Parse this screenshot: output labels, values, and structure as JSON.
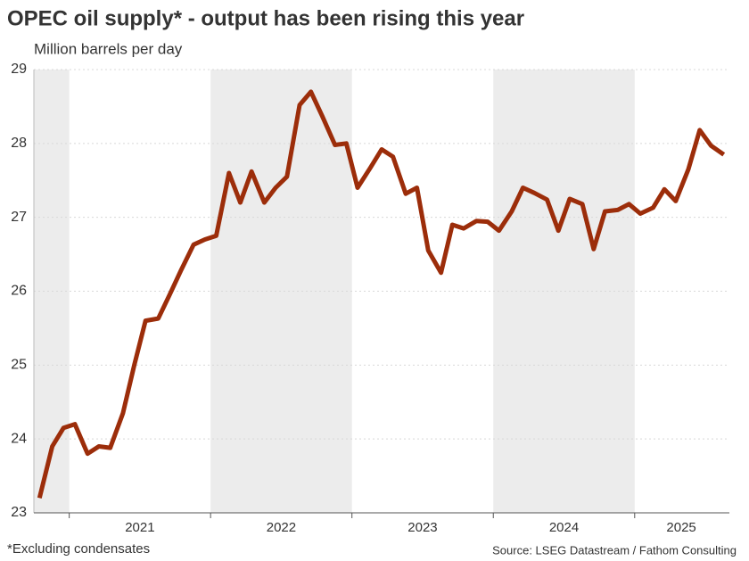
{
  "chart_data": {
    "type": "line",
    "title": "OPEC oil supply* - output has been rising this year",
    "subtitle": "Million barrels per day",
    "footnote": "*Excluding condensates",
    "source": "Source: LSEG Datastream / Fathom Consulting",
    "x": [
      2020.79,
      2020.88,
      2020.96,
      2021.04,
      2021.13,
      2021.21,
      2021.29,
      2021.38,
      2021.46,
      2021.54,
      2021.63,
      2021.71,
      2021.79,
      2021.88,
      2021.96,
      2022.04,
      2022.13,
      2022.21,
      2022.29,
      2022.38,
      2022.46,
      2022.54,
      2022.63,
      2022.71,
      2022.79,
      2022.88,
      2022.96,
      2023.04,
      2023.13,
      2023.21,
      2023.29,
      2023.38,
      2023.46,
      2023.54,
      2023.63,
      2023.71,
      2023.79,
      2023.88,
      2023.96,
      2024.04,
      2024.13,
      2024.21,
      2024.29,
      2024.38,
      2024.46,
      2024.54,
      2024.63,
      2024.71,
      2024.79,
      2024.88,
      2024.96,
      2025.04,
      2025.13,
      2025.21,
      2025.29,
      2025.38,
      2025.46,
      2025.54,
      2025.63
    ],
    "series": [
      {
        "name": "OPEC oil supply",
        "color": "#9c2d0a",
        "values": [
          23.2,
          23.9,
          24.15,
          24.2,
          23.8,
          23.9,
          23.88,
          24.35,
          25.0,
          25.6,
          25.63,
          25.95,
          26.28,
          26.63,
          26.7,
          26.75,
          27.6,
          27.2,
          27.62,
          27.2,
          27.4,
          27.55,
          28.52,
          28.7,
          28.37,
          27.98,
          28.0,
          27.4,
          27.67,
          27.92,
          27.82,
          27.32,
          27.4,
          26.55,
          26.25,
          26.9,
          26.85,
          26.95,
          26.94,
          26.82,
          27.08,
          27.4,
          27.33,
          27.24,
          26.82,
          27.25,
          27.18,
          26.57,
          27.08,
          27.1,
          27.18,
          27.05,
          27.13,
          27.38,
          27.22,
          27.65,
          28.18,
          27.97,
          27.85
        ]
      }
    ],
    "xlim": [
      2020.75,
      2025.67
    ],
    "xticks": [
      2021,
      2022,
      2023,
      2024,
      2025
    ],
    "xlabels": [
      {
        "value": 2021.5,
        "label": "2021"
      },
      {
        "value": 2022.5,
        "label": "2022"
      },
      {
        "value": 2023.5,
        "label": "2023"
      },
      {
        "value": 2024.5,
        "label": "2024"
      },
      {
        "value": 2025.33,
        "label": "2025"
      }
    ],
    "shaded": [
      [
        2020.75,
        2021
      ],
      [
        2022,
        2023
      ],
      [
        2024,
        2025
      ]
    ],
    "shade_color": "#ececec",
    "ylim": [
      23,
      29
    ],
    "yticks": [
      23,
      24,
      25,
      26,
      27,
      28,
      29
    ],
    "grid": true
  }
}
